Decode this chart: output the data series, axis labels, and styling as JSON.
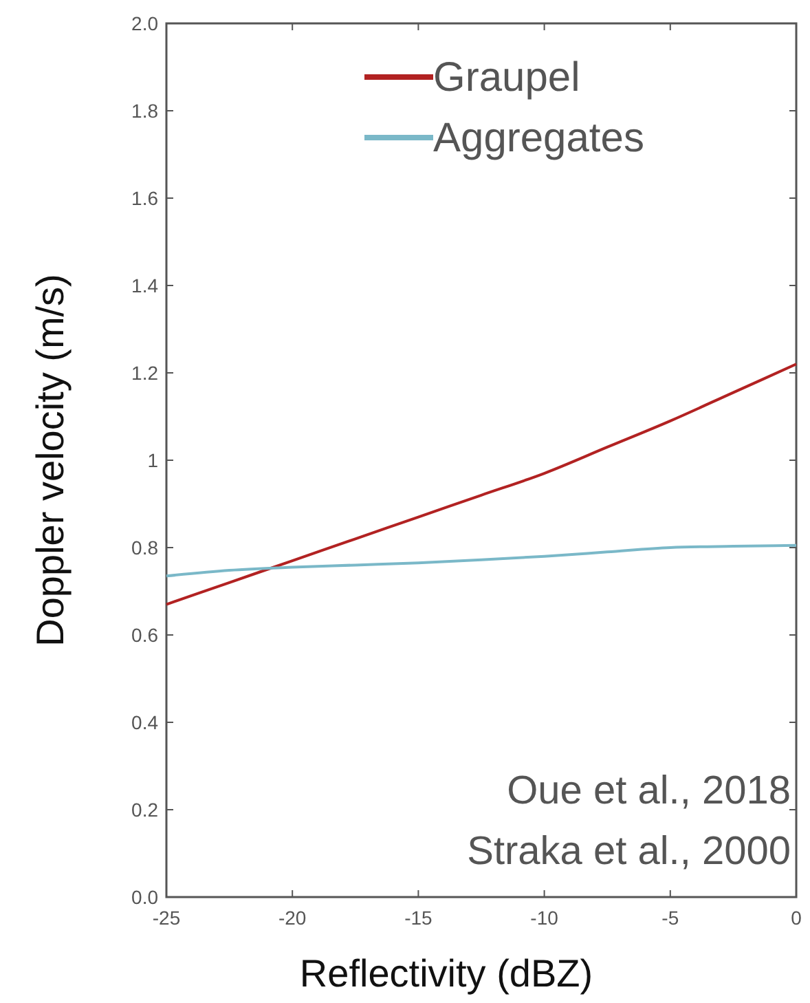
{
  "chart_data": {
    "type": "line",
    "xlabel": "Reflectivity (dBZ)",
    "ylabel": "Doppler velocity (m/s)",
    "x": [
      -25,
      -22.5,
      -20,
      -17.5,
      -15,
      -12.5,
      -10,
      -7.5,
      -5,
      -2.5,
      0
    ],
    "series": [
      {
        "name": "Graupel",
        "color": "#b22222",
        "values": [
          0.67,
          0.72,
          0.77,
          0.82,
          0.87,
          0.92,
          0.97,
          1.03,
          1.09,
          1.155,
          1.22
        ]
      },
      {
        "name": "Aggregates",
        "color": "#7ab8c8",
        "values": [
          0.735,
          0.748,
          0.755,
          0.76,
          0.765,
          0.772,
          0.78,
          0.79,
          0.8,
          0.803,
          0.805
        ]
      }
    ],
    "xlim": [
      -25,
      0
    ],
    "xticks": [
      -25,
      -20,
      -15,
      -10,
      -5,
      0
    ],
    "ylim": [
      0,
      2
    ],
    "yticks": [
      {
        "value": 0,
        "label": "0.0"
      },
      0.2,
      0.4,
      0.6,
      0.8,
      1,
      1.2,
      1.4,
      1.6,
      1.8,
      {
        "value": 2,
        "label": "2.0"
      }
    ],
    "legend": "top right",
    "grid": false,
    "marker": "none",
    "line_style": "solid",
    "annotations": [
      "Oue et al., 2018",
      "Straka et al., 2000"
    ]
  }
}
